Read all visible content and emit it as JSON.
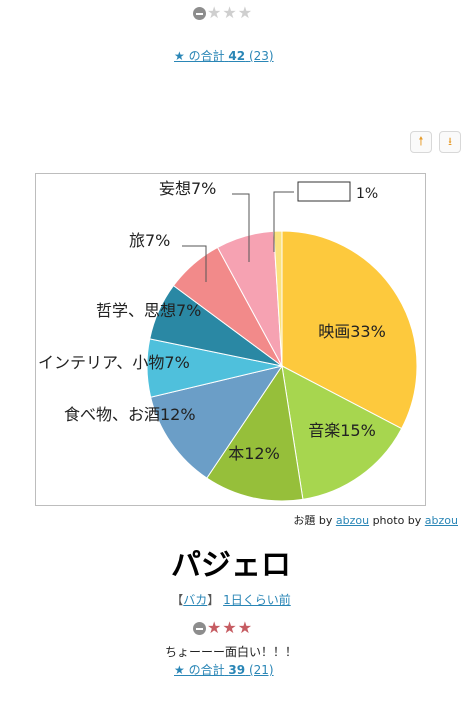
{
  "top_entry": {
    "stars": [
      false,
      false,
      false
    ],
    "total_label": "★ の合計",
    "total_value": "42",
    "total_count": "(23)"
  },
  "buttons": {
    "up_icon": "arrow-up-icon",
    "down_icon": "download-icon"
  },
  "chart_data": {
    "type": "pie",
    "start": "top",
    "direction": "clockwise",
    "slices": [
      {
        "label": "映画33%",
        "value": 33,
        "color": "#fdc93d"
      },
      {
        "label": "音楽15%",
        "value": 15,
        "color": "#a7d64f"
      },
      {
        "label": "本12%",
        "value": 12,
        "color": "#96bf3a"
      },
      {
        "label": "食べ物、お酒12%",
        "value": 12,
        "color": "#6b9ec7"
      },
      {
        "label": "インテリア、小物7%",
        "value": 7,
        "color": "#4fc0dc"
      },
      {
        "label": "哲学、思想7%",
        "value": 7,
        "color": "#2a88a4"
      },
      {
        "label": "旅7%",
        "value": 7,
        "color": "#f28a8a"
      },
      {
        "label": "妄想7%",
        "value": 7,
        "color": "#f6a2b2"
      },
      {
        "label": "",
        "value": 1,
        "color": "#fbe27e",
        "box_label": "1%"
      }
    ]
  },
  "credits": {
    "odai_label": "お題",
    "by1": "by",
    "author": "abzou",
    "photo_by": "photo by",
    "photographer": "abzou"
  },
  "main_entry": {
    "title": "パジェロ",
    "bracket_open": "【",
    "category": "バカ",
    "bracket_close": "】",
    "time_ago": "1日くらい前",
    "stars": [
      true,
      true,
      true
    ],
    "comment": "ちょーーー面白い！！！",
    "total_label": "★ の合計",
    "total_value": "39",
    "total_count": "(21)"
  }
}
